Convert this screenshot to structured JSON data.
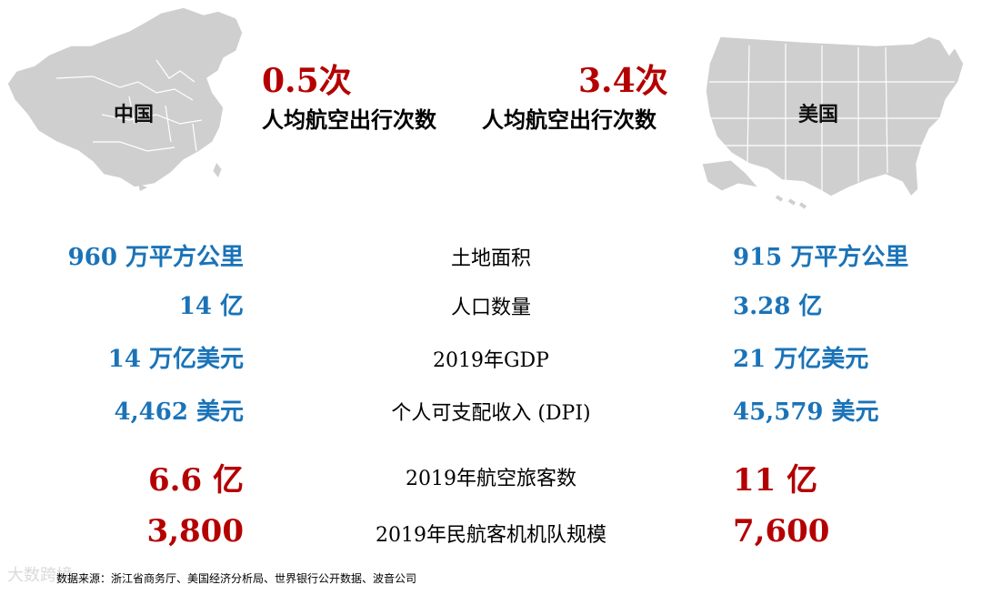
{
  "china": {
    "map_label": "中国",
    "flights_value": "0.5次",
    "flights_caption": "人均航空出行次数"
  },
  "usa": {
    "map_label": "美国",
    "flights_value": "3.4次",
    "flights_caption": "人均航空出行次数"
  },
  "rows": [
    {
      "china": "960 万平方公里",
      "metric": "土地面积",
      "usa": "915 万平方公里"
    },
    {
      "china": "14 亿",
      "metric": "人口数量",
      "usa": "3.28 亿"
    },
    {
      "china": "14 万亿美元",
      "metric": "2019年GDP",
      "usa": "21 万亿美元"
    },
    {
      "china": "4,462 美元",
      "metric": "个人可支配收入 (DPI)",
      "usa": "45,579 美元"
    },
    {
      "china": "6.6 亿",
      "metric": "2019年航空旅客数",
      "usa": "11 亿"
    },
    {
      "china": "3,800",
      "metric": "2019年民航客机机队规模",
      "usa": "7,600"
    }
  ],
  "source": "数据来源：浙江省商务厅、美国经济分析局、世界银行公开数据、波音公司",
  "watermark": "大数跨境",
  "colors": {
    "blue": "#1a73b8",
    "red": "#b40000",
    "map_fill": "#cfcfcf",
    "map_stroke": "#ffffff"
  }
}
